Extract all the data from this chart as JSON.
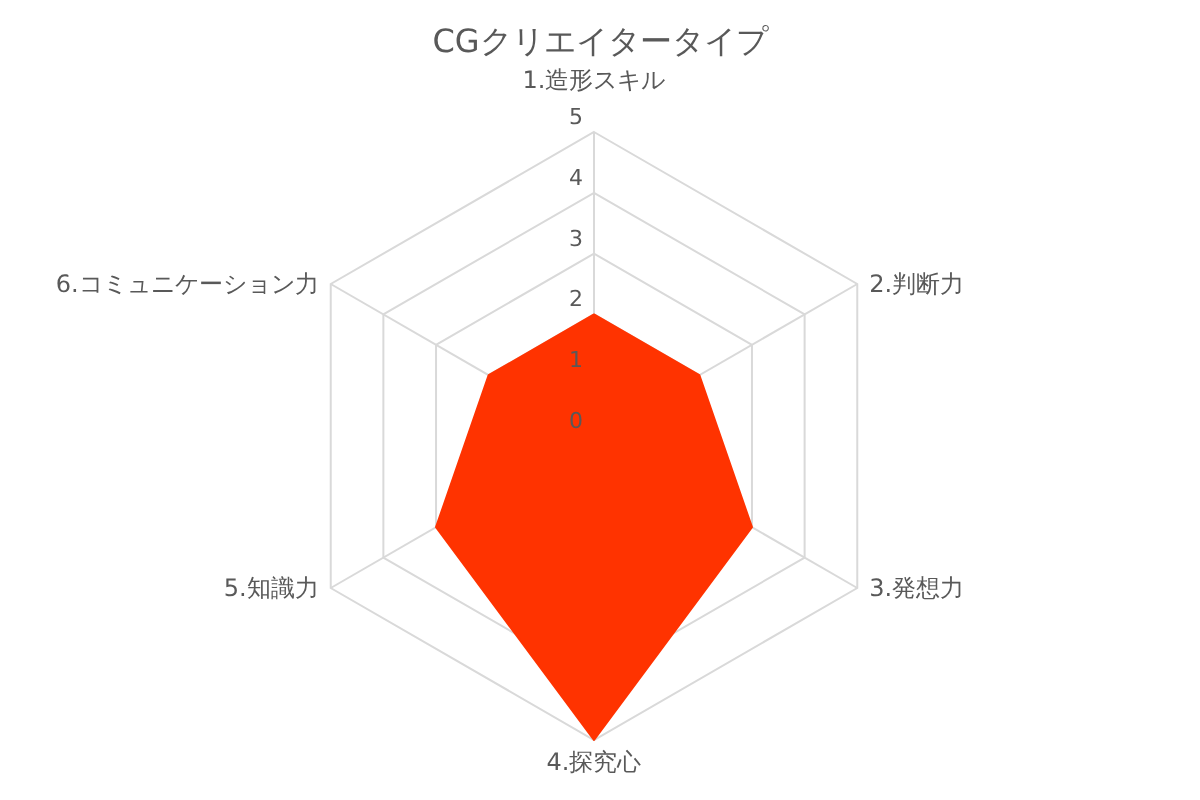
{
  "chart_data": {
    "type": "radar",
    "title": "CGクリエイタータイプ",
    "categories": [
      "1.造形スキル",
      "2.判断力",
      "3.発想力",
      "4.探究心",
      "5.知識力",
      "6.コミュニケーション力"
    ],
    "series": [
      {
        "color": "#ff3300",
        "values": [
          2,
          2,
          3,
          5,
          3,
          2
        ]
      }
    ],
    "ylim": [
      0,
      5
    ],
    "yticks": [
      0,
      1,
      2,
      3,
      4,
      5
    ],
    "grid": true
  }
}
